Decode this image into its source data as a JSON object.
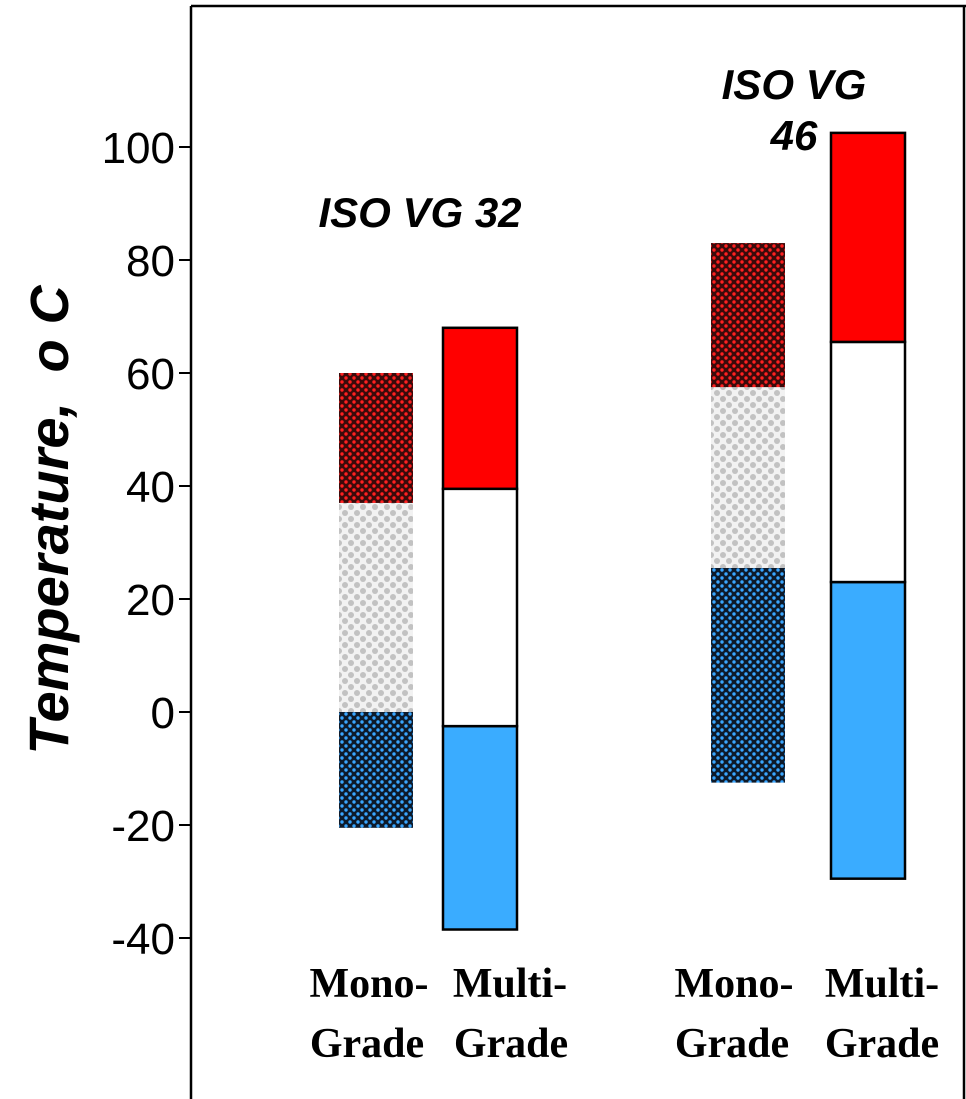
{
  "chart_data": {
    "type": "bar",
    "subtype": "floating-stacked-range",
    "title": "",
    "ylabel": "Temperature,",
    "ylabel_unit": "o C",
    "ylim": [
      -40,
      100
    ],
    "yticks": [
      -40,
      -20,
      0,
      20,
      40,
      60,
      80,
      100
    ],
    "grid": false,
    "legend": "none",
    "groups": [
      {
        "name": "ISO VG 32",
        "bars": [
          {
            "category_line1": "Mono-",
            "category_line2": "Grade",
            "segments": [
              {
                "from": -20.5,
                "to": 0,
                "pattern": "blue-dotted",
                "color": "#3a9ee0"
              },
              {
                "from": 0,
                "to": 37,
                "pattern": "grey-checker",
                "color": "#c8c8c8"
              },
              {
                "from": 37,
                "to": 60,
                "pattern": "red-dotted",
                "color": "#d01010"
              }
            ]
          },
          {
            "category_line1": "Multi-",
            "category_line2": "Grade",
            "segments": [
              {
                "from": -38.5,
                "to": -2.5,
                "pattern": "solid",
                "color": "#3aacff"
              },
              {
                "from": -2.5,
                "to": 39.5,
                "pattern": "solid",
                "color": "#ffffff"
              },
              {
                "from": 39.5,
                "to": 68,
                "pattern": "solid",
                "color": "#ff0000"
              }
            ]
          }
        ]
      },
      {
        "name": "ISO VG 46",
        "name_line1": "ISO VG",
        "name_line2": "46",
        "bars": [
          {
            "category_line1": "Mono-",
            "category_line2": "Grade",
            "segments": [
              {
                "from": -12.5,
                "to": 25.5,
                "pattern": "blue-dotted",
                "color": "#3a9ee0"
              },
              {
                "from": 25.5,
                "to": 57.5,
                "pattern": "grey-checker",
                "color": "#c8c8c8"
              },
              {
                "from": 57.5,
                "to": 83,
                "pattern": "red-dotted",
                "color": "#d01010"
              }
            ]
          },
          {
            "category_line1": "Multi-",
            "category_line2": "Grade",
            "segments": [
              {
                "from": -29.5,
                "to": 23,
                "pattern": "solid",
                "color": "#3aacff"
              },
              {
                "from": 23,
                "to": 65.5,
                "pattern": "solid",
                "color": "#ffffff"
              },
              {
                "from": 65.5,
                "to": 102.5,
                "pattern": "solid",
                "color": "#ff0000"
              }
            ]
          }
        ]
      }
    ]
  }
}
